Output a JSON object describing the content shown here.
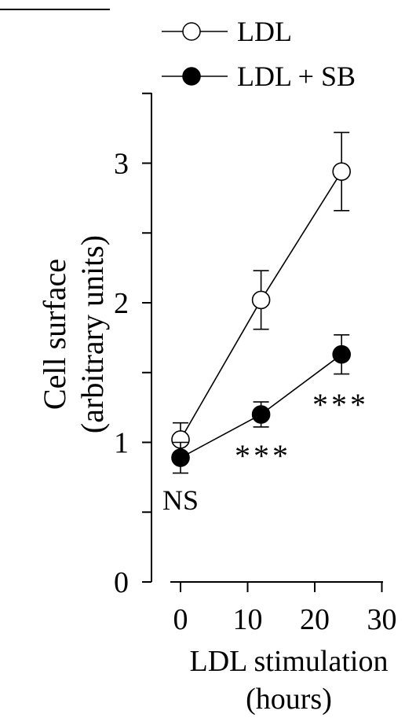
{
  "chart_data": {
    "type": "line",
    "xlabel": [
      "LDL stimulation",
      "(hours)"
    ],
    "ylabel": [
      "Cell surface",
      "(arbitrary units)"
    ],
    "xlim": [
      0,
      30
    ],
    "ylim": [
      0,
      3.5
    ],
    "xticks": [
      0,
      10,
      20,
      30
    ],
    "yticks": [
      0,
      1,
      2,
      3
    ],
    "series": [
      {
        "name": "LDL",
        "marker": "open-circle",
        "color": "#000000",
        "x": [
          0,
          12,
          24
        ],
        "y": [
          1.02,
          2.02,
          2.94
        ],
        "err": [
          0.12,
          0.21,
          0.28
        ]
      },
      {
        "name": "LDL + SB",
        "marker": "filled-circle",
        "color": "#000000",
        "x": [
          0,
          12,
          24
        ],
        "y": [
          0.89,
          1.2,
          1.63
        ],
        "err": [
          0.11,
          0.09,
          0.14
        ]
      }
    ],
    "annotations": [
      {
        "text": "NS",
        "x": 0
      },
      {
        "text": "***",
        "x": 12
      },
      {
        "text": "***",
        "x": 24
      }
    ],
    "legend": "top-right",
    "grid": false
  }
}
